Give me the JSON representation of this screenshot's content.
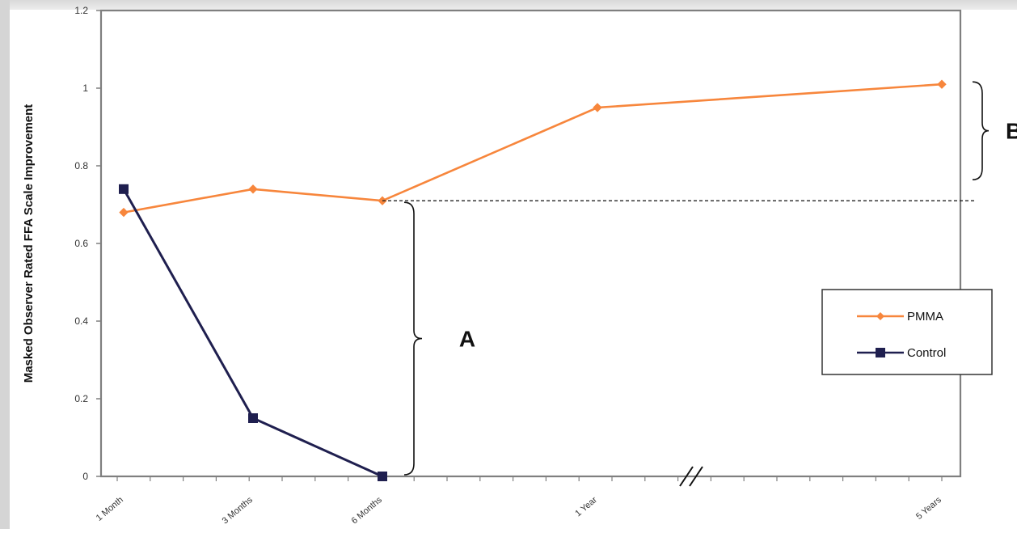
{
  "chart_data": {
    "type": "line",
    "title": "",
    "ylabel": "Masked Observer Rated FFA Scale Improvement",
    "xlabel": "",
    "categories": [
      "1 Month",
      "3 Months",
      "6 Months",
      "1 Year",
      "5 Years"
    ],
    "ylim": [
      0,
      1.2
    ],
    "yticks": [
      "0",
      "0.2",
      "0.4",
      "0.6",
      "0.8",
      "1",
      "1.2"
    ],
    "axis_break": "between 1 Year and 5 Years",
    "grid": false,
    "legend_position": "right",
    "series": [
      {
        "name": "PMMA",
        "color": "#f7863c",
        "marker": "diamond",
        "values": [
          0.68,
          0.74,
          0.71,
          0.95,
          1.01
        ]
      },
      {
        "name": "Control",
        "color": "#1f1f4f",
        "marker": "square",
        "values": [
          0.74,
          0.15,
          0.0,
          null,
          null
        ]
      }
    ],
    "annotations": [
      {
        "label": "A",
        "meaning": "difference between PMMA and Control at 6 Months"
      },
      {
        "label": "B",
        "meaning": "PMMA improvement from 6 Months to 5 Years"
      }
    ]
  }
}
